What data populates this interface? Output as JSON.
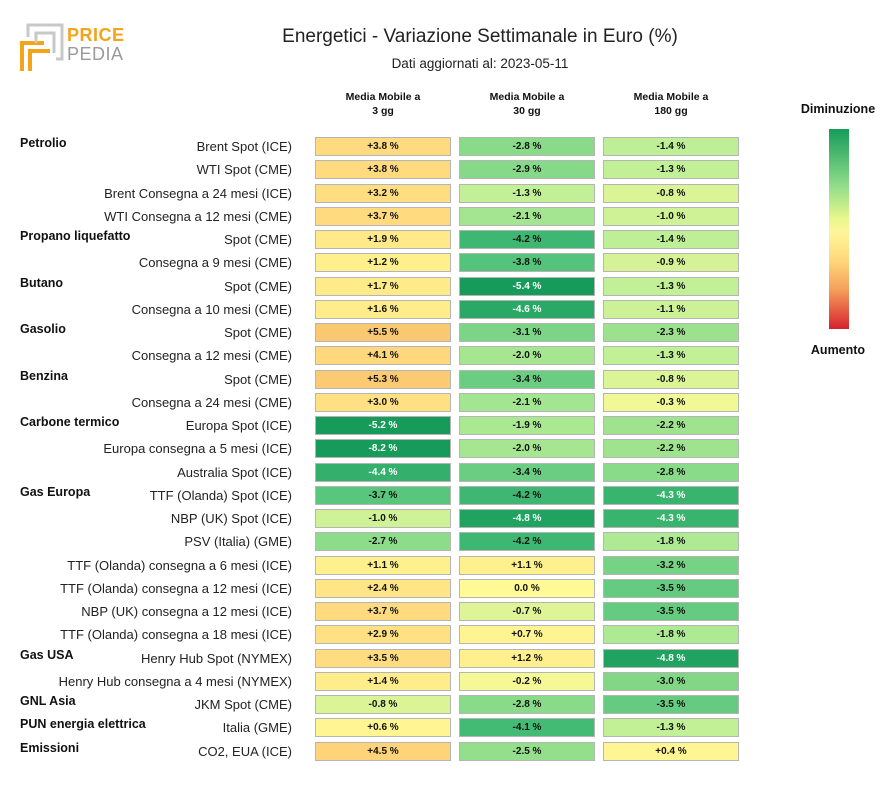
{
  "logo": {
    "price": "PRICE",
    "pedia": "PEDIA"
  },
  "title": "Energetici - Variazione Settimanale in Euro (%)",
  "subtitle": "Dati aggiornati al: 2023-05-11",
  "legend": {
    "top": "Diminuzione",
    "bottom": "Aumento"
  },
  "chart_data": {
    "type": "table",
    "columns": [
      "Media Mobile a\n3 gg",
      "Media Mobile a\n30 gg",
      "Media Mobile a\n180 gg"
    ],
    "rows": [
      {
        "group": "Petrolio",
        "label": "Brent Spot (ICE)",
        "values": [
          3.8,
          -2.8,
          -1.4
        ],
        "text": [
          "+3.8 %",
          "-2.8 %",
          "-1.4 %"
        ]
      },
      {
        "group": "",
        "label": "WTI Spot (CME)",
        "values": [
          3.8,
          -2.9,
          -1.3
        ],
        "text": [
          "+3.8 %",
          "-2.9 %",
          "-1.3 %"
        ]
      },
      {
        "group": "",
        "label": "Brent Consegna a 24 mesi (ICE)",
        "values": [
          3.2,
          -1.3,
          -0.8
        ],
        "text": [
          "+3.2 %",
          "-1.3 %",
          "-0.8 %"
        ]
      },
      {
        "group": "",
        "label": "WTI Consegna a 12 mesi (CME)",
        "values": [
          3.7,
          -2.1,
          -1.0
        ],
        "text": [
          "+3.7 %",
          "-2.1 %",
          "-1.0 %"
        ]
      },
      {
        "group": "Propano liquefatto",
        "label": "Spot (CME)",
        "values": [
          1.9,
          -4.2,
          -1.4
        ],
        "text": [
          "+1.9 %",
          "-4.2 %",
          "-1.4 %"
        ]
      },
      {
        "group": "",
        "label": "Consegna a 9 mesi (CME)",
        "values": [
          1.2,
          -3.8,
          -0.9
        ],
        "text": [
          "+1.2 %",
          "-3.8 %",
          "-0.9 %"
        ]
      },
      {
        "group": "Butano",
        "label": "Spot (CME)",
        "values": [
          1.7,
          -5.4,
          -1.3
        ],
        "text": [
          "+1.7 %",
          "-5.4 %",
          "-1.3 %"
        ]
      },
      {
        "group": "",
        "label": "Consegna a 10 mesi (CME)",
        "values": [
          1.6,
          -4.6,
          -1.1
        ],
        "text": [
          "+1.6 %",
          "-4.6 %",
          "-1.1 %"
        ]
      },
      {
        "group": "Gasolio",
        "label": "Spot (CME)",
        "values": [
          5.5,
          -3.1,
          -2.3
        ],
        "text": [
          "+5.5 %",
          "-3.1 %",
          "-2.3 %"
        ]
      },
      {
        "group": "",
        "label": "Consegna a 12 mesi (CME)",
        "values": [
          4.1,
          -2.0,
          -1.3
        ],
        "text": [
          "+4.1 %",
          "-2.0 %",
          "-1.3 %"
        ]
      },
      {
        "group": "Benzina",
        "label": "Spot (CME)",
        "values": [
          5.3,
          -3.4,
          -0.8
        ],
        "text": [
          "+5.3 %",
          "-3.4 %",
          "-0.8 %"
        ]
      },
      {
        "group": "",
        "label": "Consegna a 24 mesi (CME)",
        "values": [
          3.0,
          -2.1,
          -0.3
        ],
        "text": [
          "+3.0 %",
          "-2.1 %",
          "-0.3 %"
        ]
      },
      {
        "group": "Carbone termico",
        "label": "Europa Spot (ICE)",
        "values": [
          -5.2,
          -1.9,
          -2.2
        ],
        "text": [
          "-5.2 %",
          "-1.9 %",
          "-2.2 %"
        ]
      },
      {
        "group": "",
        "label": "Europa consegna a 5 mesi (ICE)",
        "values": [
          -8.2,
          -2.0,
          -2.2
        ],
        "text": [
          "-8.2 %",
          "-2.0 %",
          "-2.2 %"
        ]
      },
      {
        "group": "",
        "label": "Australia Spot (ICE)",
        "values": [
          -4.4,
          -3.4,
          -2.8
        ],
        "text": [
          "-4.4 %",
          "-3.4 %",
          "-2.8 %"
        ]
      },
      {
        "group": "Gas Europa",
        "label": "TTF (Olanda) Spot (ICE)",
        "values": [
          -3.7,
          -4.2,
          -4.3
        ],
        "text": [
          "-3.7 %",
          "-4.2 %",
          "-4.3 %"
        ]
      },
      {
        "group": "",
        "label": "NBP (UK) Spot (ICE)",
        "values": [
          -1.0,
          -4.8,
          -4.3
        ],
        "text": [
          "-1.0 %",
          "-4.8 %",
          "-4.3 %"
        ]
      },
      {
        "group": "",
        "label": "PSV (Italia) (GME)",
        "values": [
          -2.7,
          -4.2,
          -1.8
        ],
        "text": [
          "-2.7 %",
          "-4.2 %",
          "-1.8 %"
        ]
      },
      {
        "group": "",
        "label": "TTF (Olanda) consegna a 6 mesi (ICE)",
        "values": [
          1.1,
          1.1,
          -3.2
        ],
        "text": [
          "+1.1 %",
          "+1.1 %",
          "-3.2 %"
        ]
      },
      {
        "group": "",
        "label": "TTF (Olanda) consegna a 12 mesi (ICE)",
        "values": [
          2.4,
          0.0,
          -3.5
        ],
        "text": [
          "+2.4 %",
          "0.0 %",
          "-3.5 %"
        ]
      },
      {
        "group": "",
        "label": "NBP (UK) consegna a 12 mesi (ICE)",
        "values": [
          3.7,
          -0.7,
          -3.5
        ],
        "text": [
          "+3.7 %",
          "-0.7 %",
          "-3.5 %"
        ]
      },
      {
        "group": "",
        "label": "TTF (Olanda) consegna a 18 mesi (ICE)",
        "values": [
          2.9,
          0.7,
          -1.8
        ],
        "text": [
          "+2.9 %",
          "+0.7 %",
          "-1.8 %"
        ]
      },
      {
        "group": "Gas USA",
        "label": "Henry Hub Spot (NYMEX)",
        "values": [
          3.5,
          1.2,
          -4.8
        ],
        "text": [
          "+3.5 %",
          "+1.2 %",
          "-4.8 %"
        ]
      },
      {
        "group": "",
        "label": "Henry Hub consegna a 4 mesi (NYMEX)",
        "values": [
          1.4,
          -0.2,
          -3.0
        ],
        "text": [
          "+1.4 %",
          "-0.2 %",
          "-3.0 %"
        ]
      },
      {
        "group": "GNL Asia",
        "label": "JKM Spot (CME)",
        "values": [
          -0.8,
          -2.8,
          -3.5
        ],
        "text": [
          "-0.8 %",
          "-2.8 %",
          "-3.5 %"
        ]
      },
      {
        "group": "PUN energia elettrica",
        "label": "Italia (GME)",
        "values": [
          0.6,
          -4.1,
          -1.3
        ],
        "text": [
          "+0.6 %",
          "-4.1 %",
          "-1.3 %"
        ]
      },
      {
        "group": "Emissioni",
        "label": "CO2, EUA (ICE)",
        "values": [
          4.5,
          -2.5,
          0.4
        ],
        "text": [
          "+4.5 %",
          "-2.5 %",
          "+0.4 %"
        ]
      }
    ]
  }
}
